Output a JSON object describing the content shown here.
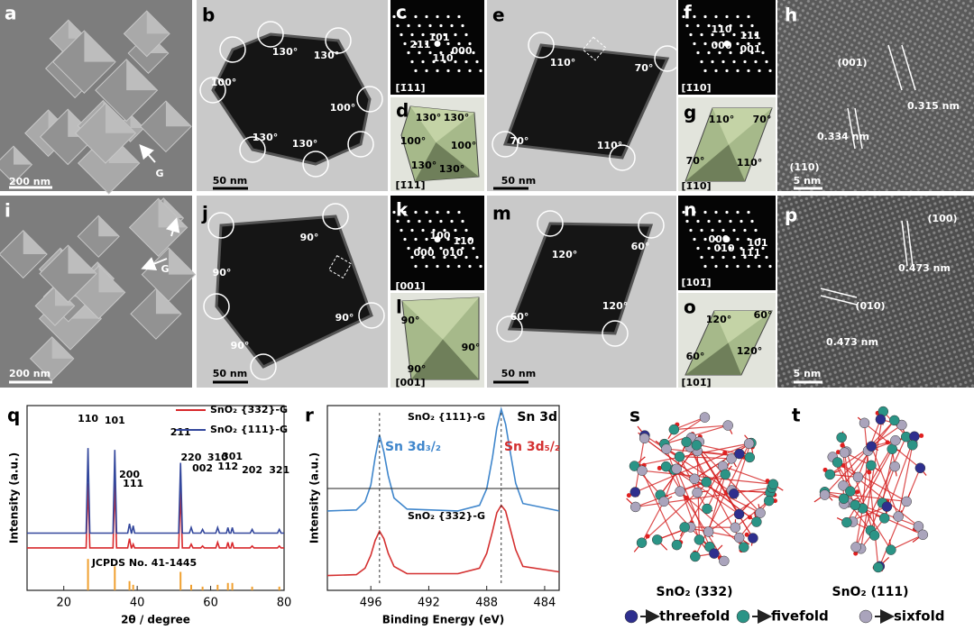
{
  "figure": {
    "panels": {
      "a": {
        "label": "a",
        "texts": [
          "200 nm",
          "G"
        ]
      },
      "b": {
        "label": "b",
        "texts": [
          "130°",
          "130°",
          "100°",
          "100°",
          "130°",
          "130°",
          "50 nm"
        ]
      },
      "c": {
        "label": "c",
        "texts": [
          "101",
          "211",
          "000",
          "110",
          "[1̄11]"
        ]
      },
      "d": {
        "label": "d",
        "texts": [
          "130°",
          "130°",
          "100°",
          "100°",
          "130°",
          "130°",
          "[1̄11]"
        ]
      },
      "e": {
        "label": "e",
        "texts": [
          "110°",
          "70°",
          "70°",
          "110°",
          "50 nm"
        ]
      },
      "f": {
        "label": "f",
        "texts": [
          "110",
          "111",
          "000",
          "001",
          "[1̄10]"
        ]
      },
      "g": {
        "label": "g",
        "texts": [
          "110°",
          "70°",
          "70°",
          "110°",
          "[1̄10]"
        ]
      },
      "h": {
        "label": "h",
        "texts": [
          "(001)",
          "0.315 nm",
          "(110)",
          "0.334 nm",
          "5 nm"
        ]
      },
      "i": {
        "label": "i",
        "texts": [
          "G",
          "200 nm"
        ]
      },
      "j": {
        "label": "j",
        "texts": [
          "90°",
          "90°",
          "90°",
          "90°",
          "50 nm"
        ]
      },
      "k": {
        "label": "k",
        "texts": [
          "100",
          "110",
          "000",
          "010",
          "[001]"
        ]
      },
      "l": {
        "label": "l",
        "texts": [
          "90°",
          "90°",
          "90°",
          "[001]"
        ]
      },
      "m": {
        "label": "m",
        "texts": [
          "120°",
          "60°",
          "60°",
          "120°",
          "50 nm"
        ]
      },
      "n": {
        "label": "n",
        "texts": [
          "000",
          "101",
          "010",
          "111",
          "[101̄]"
        ]
      },
      "o": {
        "label": "o",
        "texts": [
          "120°",
          "60°",
          "60°",
          "120°",
          "[101̄]"
        ]
      },
      "p": {
        "label": "p",
        "texts": [
          "(100)",
          "0.473 nm",
          "(010)",
          "0.473 nm",
          "5 nm"
        ]
      }
    }
  },
  "chart_data": [
    {
      "type": "line",
      "label": "q",
      "x_label": "2θ / degree",
      "y_label": "Intensity (a.u.)",
      "xlim": [
        10,
        80
      ],
      "xticks": [
        20,
        40,
        60,
        80
      ],
      "ylim": [
        0,
        100
      ],
      "legend": "top-right",
      "x": [
        10,
        26.1,
        26.6,
        27.1,
        33.4,
        33.9,
        34.4,
        37.4,
        37.9,
        38.4,
        38.5,
        38.9,
        39.3,
        51.3,
        51.8,
        52.3,
        54.2,
        54.7,
        55.2,
        57.3,
        57.8,
        58.3,
        61.4,
        61.9,
        62.4,
        64.3,
        64.7,
        65.1,
        65.5,
        65.9,
        66.3,
        70.8,
        71.3,
        71.8,
        78.2,
        78.7,
        79.2,
        80
      ],
      "series": [
        {
          "name": "SnO₂ {332}-G",
          "color": "#d8282c",
          "values": [
            23,
            23,
            58,
            23,
            23,
            58,
            23,
            23,
            28,
            23,
            23,
            25,
            23,
            23,
            54,
            23,
            23,
            25,
            23,
            23,
            24,
            23,
            23,
            26,
            23,
            23,
            26,
            23,
            23,
            26,
            23,
            23,
            24,
            23,
            23,
            24,
            23,
            23
          ]
        },
        {
          "name": "SnO₂ {111}-G",
          "color": "#33479c",
          "values": [
            31,
            31,
            77,
            31,
            31,
            76,
            31,
            31,
            36,
            31,
            31,
            35,
            31,
            31,
            69,
            31,
            31,
            34,
            31,
            31,
            33,
            31,
            31,
            34,
            31,
            31,
            34,
            31,
            31,
            34,
            31,
            31,
            33,
            31,
            31,
            33,
            31,
            31
          ]
        }
      ],
      "reference": {
        "name": "JCPDS No. 41-1445",
        "color": "#f0a030",
        "x": [
          26.6,
          33.9,
          37.9,
          38.9,
          51.8,
          54.7,
          57.8,
          61.9,
          64.7,
          65.9,
          71.3,
          78.7
        ],
        "values": [
          17,
          13,
          5,
          3,
          10,
          3,
          2,
          3,
          4,
          4,
          2,
          2
        ]
      },
      "peak_labels": {
        "labels": [
          "110",
          "101",
          "200",
          "111",
          "211",
          "220",
          "002",
          "310",
          "112",
          "301",
          "202",
          "321"
        ],
        "x": [
          26.6,
          33.9,
          37.9,
          38.9,
          51.8,
          54.7,
          57.8,
          61.9,
          64.7,
          65.9,
          71.3,
          78.7
        ]
      }
    },
    {
      "type": "line",
      "label": "r",
      "x_label": "Binding Energy (eV)",
      "y_label": "Intensity (a.u.)",
      "xlim": [
        499,
        483
      ],
      "xticks": [
        496,
        492,
        488,
        484
      ],
      "ylim": [
        0,
        100
      ],
      "x": [
        499,
        497,
        496.4,
        496,
        495.7,
        495.4,
        495.1,
        494.8,
        494.4,
        493.5,
        490,
        488.5,
        488,
        487.6,
        487.3,
        487.0,
        486.7,
        486.4,
        486,
        485.5,
        483
      ],
      "series": [
        {
          "name": "SnO₂ {111}-G",
          "color": "#3f86cc",
          "values": [
            43,
            43.5,
            48,
            57,
            72,
            84,
            75,
            62,
            50,
            44,
            43,
            46,
            55,
            72,
            88,
            98,
            90,
            76,
            58,
            47,
            43
          ]
        },
        {
          "name": "SnO₂ {332}-G",
          "color": "#d43030",
          "values": [
            8,
            8.5,
            12,
            19,
            27,
            32,
            28,
            20,
            13,
            9,
            9,
            12,
            20,
            32,
            42,
            46,
            43,
            34,
            22,
            13,
            10
          ]
        }
      ],
      "peak_positions": [
        495.4,
        487.0
      ],
      "annotations": [
        "Sn 3d",
        "Sn 3d₃/₂",
        "Sn 3d₅/₂"
      ]
    }
  ],
  "structures": {
    "s": {
      "label": "s",
      "caption": "SnO₂ (332)"
    },
    "t": {
      "label": "t",
      "caption": "SnO₂ (111)"
    },
    "legend": [
      {
        "label": "threefold",
        "color": "#2e2f8e"
      },
      {
        "label": "fivefold",
        "color": "#2b9486"
      },
      {
        "label": "sixfold",
        "color": "#aaa4bc"
      }
    ]
  }
}
